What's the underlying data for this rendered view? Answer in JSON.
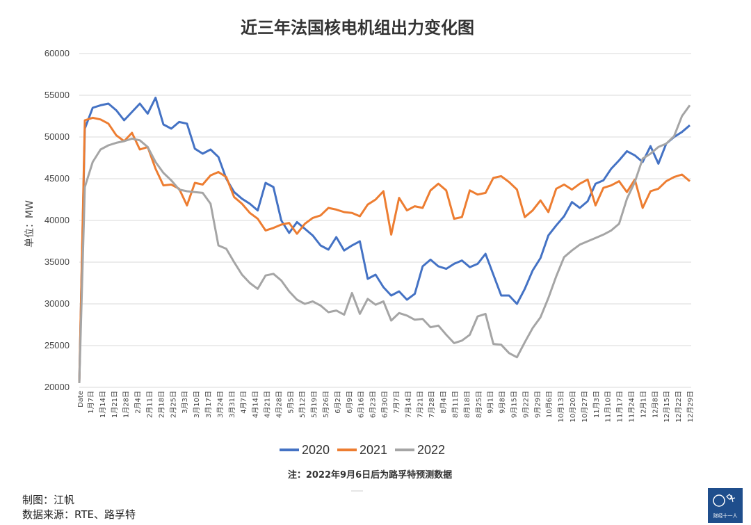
{
  "chart_data": {
    "type": "line",
    "title": "近三年法国核电机组出力变化图",
    "ylabel": "单位：MW",
    "ylim": [
      20000,
      60000
    ],
    "yticks": [
      "20000",
      "25000",
      "30000",
      "35000",
      "40000",
      "45000",
      "50000",
      "55000",
      "60000"
    ],
    "x_origin_label": "Date",
    "x_ticks": [
      "1月7日",
      "1月14日",
      "1月21日",
      "1月28日",
      "2月4日",
      "2月11日",
      "2月18日",
      "2月25日",
      "3月3日",
      "3月10日",
      "3月17日",
      "3月24日",
      "3月31日",
      "4月7日",
      "4月14日",
      "4月21日",
      "4月28日",
      "5月5日",
      "5月12日",
      "5月19日",
      "5月26日",
      "6月2日",
      "6月9日",
      "6月16日",
      "6月23日",
      "6月30日",
      "7月7日",
      "7月14日",
      "7月21日",
      "7月28日",
      "8月4日",
      "8月11日",
      "8月18日",
      "8月25日",
      "9月1日",
      "9月8日",
      "9月15日",
      "9月22日",
      "9月29日",
      "10月6日",
      "10月13日",
      "10月20日",
      "10月27日",
      "11月3日",
      "11月10日",
      "11月17日",
      "11月24日",
      "12月1日",
      "12月8日",
      "12月15日",
      "12月22日",
      "12月29日"
    ],
    "series": [
      {
        "name": "2020",
        "color": "#4472C4",
        "values": [
          51000,
          53500,
          53800,
          54000,
          53200,
          52000,
          53000,
          54000,
          52800,
          54700,
          51500,
          51000,
          51800,
          51600,
          48600,
          48000,
          48500,
          47600,
          45000,
          43400,
          42600,
          42000,
          41200,
          44500,
          44000,
          40000,
          38500,
          39800,
          39000,
          38200,
          37000,
          36500,
          38000,
          36400,
          37000,
          37500,
          33000,
          33500,
          32000,
          31000,
          31500,
          30500,
          31200,
          34500,
          35300,
          34500,
          34200,
          34800,
          35200,
          34400,
          34800,
          36000,
          33500,
          31000,
          31000,
          30000,
          31800,
          34000,
          35500,
          38200,
          39400,
          40500,
          42200,
          41500,
          42300,
          44400,
          44800,
          46200,
          47200,
          48300,
          47800,
          47000,
          48900,
          46800,
          49200,
          50000,
          50600,
          51400
        ]
      },
      {
        "name": "2021",
        "color": "#ED7D31",
        "values": [
          52000,
          52300,
          52100,
          51600,
          50200,
          49500,
          50500,
          48500,
          48800,
          46200,
          44200,
          44300,
          43800,
          41800,
          44500,
          44300,
          45400,
          45800,
          45200,
          42800,
          42000,
          40900,
          40200,
          38800,
          39100,
          39500,
          39700,
          38400,
          39600,
          40300,
          40600,
          41500,
          41300,
          41000,
          40900,
          40500,
          41900,
          42500,
          43500,
          38300,
          42700,
          41200,
          41700,
          41500,
          43600,
          44400,
          43600,
          40200,
          40400,
          43600,
          43100,
          43300,
          45100,
          45300,
          44600,
          43700,
          40400,
          41200,
          42400,
          41000,
          43800,
          44300,
          43700,
          44400,
          44900,
          41800,
          43900,
          44200,
          44700,
          43400,
          44900,
          41500,
          43500,
          43800,
          44700,
          45200,
          45500,
          44700
        ]
      },
      {
        "name": "2022",
        "color": "#A5A5A5",
        "values": [
          44000,
          47000,
          48500,
          49000,
          49300,
          49500,
          49800,
          49600,
          48800,
          47000,
          45700,
          44800,
          43700,
          43500,
          43400,
          43300,
          42000,
          37000,
          36600,
          35000,
          33500,
          32500,
          31800,
          33400,
          33600,
          32800,
          31500,
          30500,
          30000,
          30300,
          29800,
          29000,
          29200,
          28700,
          31300,
          28800,
          30600,
          29900,
          30300,
          28000,
          28900,
          28600,
          28100,
          28200,
          27200,
          27400,
          26300,
          25300,
          25600,
          26300,
          28500,
          28800,
          25200,
          25100,
          24100,
          23600,
          25400,
          27100,
          28400,
          30700,
          33300,
          35600,
          36400,
          37100,
          37500,
          37900,
          38300,
          38800,
          39600,
          42600,
          44600,
          47400,
          48000,
          48800,
          49200,
          50100,
          52500,
          53800
        ]
      }
    ],
    "legend": {
      "position": "bottom-center",
      "entries": [
        "2020",
        "2021",
        "2022"
      ]
    },
    "grid": true
  },
  "note": "注：2022年9月6日后为路孚特预测数据",
  "credits": {
    "author": "制图：江帆",
    "source": "数据来源：RTE、路孚特"
  },
  "logo": {
    "text": "财经十一人",
    "bg": "#1F4E8C"
  }
}
